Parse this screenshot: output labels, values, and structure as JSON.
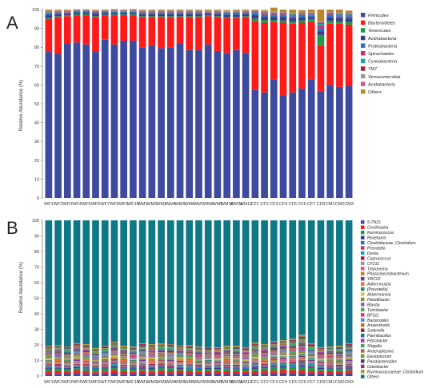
{
  "chart_data": [
    {
      "panel": "A",
      "type": "bar",
      "stacked": true,
      "ylabel": "Relative Abundance (%)",
      "ylim": [
        0,
        100
      ],
      "yticks": [
        0,
        10,
        20,
        30,
        40,
        50,
        60,
        70,
        80,
        90,
        100
      ],
      "categories": [
        "WF1",
        "WF2",
        "WF3",
        "WF4",
        "WF5",
        "WF6",
        "WF7",
        "WF8",
        "WF9",
        "WF10",
        "WM1",
        "WM2",
        "WM3",
        "WM4",
        "WM5",
        "WM6",
        "WM7",
        "WM8",
        "WM9",
        "WM10",
        "WM11",
        "WM12",
        "CF1",
        "CF2",
        "CF3",
        "CF4",
        "CF5",
        "CF6",
        "CF7",
        "CF8",
        "CM1",
        "CM2",
        "CM3"
      ],
      "series": [
        {
          "name": "Firmicutes",
          "color": "#3d4a9e",
          "values": [
            77.5,
            76.5,
            82,
            82.5,
            81.5,
            77.5,
            84,
            81.5,
            83.5,
            83.5,
            80,
            81,
            79.5,
            80,
            82,
            78.5,
            78.5,
            81.5,
            78,
            77,
            78.5,
            77,
            57.5,
            56,
            63,
            54.5,
            56,
            58,
            63,
            56.5,
            60,
            59,
            59.5
          ]
        },
        {
          "name": "Bacteroidetes",
          "color": "#ff1a1a",
          "values": [
            17.5,
            19.5,
            14.5,
            14.5,
            15.5,
            18.5,
            13,
            15.5,
            13.5,
            13.5,
            16,
            15,
            16.5,
            16,
            14,
            17.5,
            17.5,
            15,
            18,
            18.5,
            17,
            19,
            36.5,
            37,
            30.5,
            38.5,
            36.5,
            35,
            30.5,
            24.5,
            32.5,
            33.5,
            32.5
          ]
        },
        {
          "name": "Tenericutes",
          "color": "#1f9a4a",
          "values": [
            0.5,
            0.5,
            0.5,
            0.5,
            0.5,
            0.5,
            0.3,
            0.4,
            0.4,
            0.4,
            0.5,
            0.5,
            0.5,
            0.5,
            0.5,
            0.5,
            0.5,
            0.4,
            0.5,
            0.5,
            0.6,
            0.5,
            1.2,
            1.5,
            1.0,
            1.2,
            1.2,
            1.3,
            1.3,
            5.5,
            1.5,
            1.2,
            1.5
          ]
        },
        {
          "name": "Actinobacteria",
          "color": "#3b3c8c",
          "values": [
            1.5,
            1.0,
            0.8,
            0.8,
            0.8,
            1.2,
            0.8,
            0.8,
            0.8,
            0.8,
            1.0,
            1.0,
            1.0,
            1.0,
            1.0,
            1.0,
            1.0,
            0.8,
            1.0,
            1.2,
            1.2,
            1.0,
            1.8,
            1.5,
            1.5,
            1.8,
            1.8,
            1.5,
            1.2,
            2.0,
            1.8,
            1.8,
            1.8
          ]
        },
        {
          "name": "Proteobacteria",
          "color": "#2f6fc0",
          "values": [
            1.0,
            0.8,
            0.6,
            0.6,
            0.6,
            0.8,
            0.6,
            0.6,
            0.6,
            0.6,
            0.8,
            0.8,
            0.8,
            0.8,
            0.8,
            0.8,
            0.8,
            0.6,
            0.8,
            0.8,
            0.9,
            0.8,
            1.0,
            1.2,
            1.0,
            1.0,
            1.0,
            1.0,
            0.9,
            1.5,
            1.2,
            1.0,
            1.2
          ]
        },
        {
          "name": "Spirochaetes",
          "color": "#c8336e",
          "values": [
            0.4,
            0.3,
            0.3,
            0.3,
            0.3,
            0.3,
            0.3,
            0.3,
            0.3,
            0.3,
            0.3,
            0.3,
            0.3,
            0.3,
            0.3,
            0.3,
            0.3,
            0.3,
            0.3,
            0.3,
            0.3,
            0.3,
            0.5,
            0.5,
            0.5,
            0.5,
            0.5,
            0.5,
            0.5,
            1.5,
            0.5,
            0.5,
            0.5
          ]
        },
        {
          "name": "Cyanobacteria",
          "color": "#1aa6a6",
          "values": [
            0.3,
            0.3,
            0.2,
            0.2,
            0.2,
            0.2,
            0.2,
            0.2,
            0.2,
            0.2,
            0.3,
            0.3,
            0.3,
            0.3,
            0.3,
            0.3,
            0.3,
            0.2,
            0.3,
            0.3,
            0.3,
            0.3,
            0.5,
            0.5,
            0.5,
            0.5,
            0.5,
            0.5,
            0.5,
            1.0,
            0.5,
            0.5,
            0.5
          ]
        },
        {
          "name": "TM7",
          "color": "#b01f3a",
          "values": [
            0.2,
            0.2,
            0.2,
            0.2,
            0.2,
            0.2,
            0.2,
            0.2,
            0.2,
            0.2,
            0.2,
            0.2,
            0.2,
            0.2,
            0.2,
            0.2,
            0.2,
            0.2,
            0.2,
            0.2,
            0.2,
            0.2,
            0.3,
            0.3,
            0.3,
            0.3,
            0.3,
            0.3,
            0.3,
            0.5,
            0.3,
            0.3,
            0.3
          ]
        },
        {
          "name": "Verrucomicrobia",
          "color": "#9a9a9a",
          "values": [
            0.3,
            0.3,
            0.2,
            0.2,
            0.2,
            0.2,
            0.2,
            0.2,
            0.2,
            0.2,
            0.3,
            0.3,
            0.3,
            0.3,
            0.3,
            0.3,
            0.3,
            0.2,
            0.3,
            0.3,
            0.3,
            0.3,
            0.3,
            0.5,
            0.5,
            0.3,
            0.3,
            0.3,
            0.3,
            0.5,
            0.3,
            0.5,
            0.5
          ]
        },
        {
          "name": "Acidobacteria",
          "color": "#d05a8a",
          "values": [
            0.1,
            0.1,
            0.1,
            0.1,
            0.1,
            0.1,
            0.1,
            0.1,
            0.1,
            0.1,
            0.1,
            0.1,
            0.1,
            0.1,
            0.1,
            0.1,
            0.1,
            0.1,
            0.1,
            0.1,
            0.1,
            0.1,
            0.1,
            0.2,
            0.2,
            0.1,
            0.1,
            0.1,
            0.1,
            0.3,
            0.1,
            0.2,
            0.2
          ]
        },
        {
          "name": "Others",
          "color": "#b8862b",
          "values": [
            0.7,
            0.5,
            0.6,
            0.3,
            0.3,
            0.5,
            0.3,
            0.5,
            0.3,
            0.5,
            0.5,
            0.5,
            0.5,
            0.5,
            0.5,
            0.5,
            0.5,
            0.7,
            0.5,
            0.6,
            0.6,
            0.5,
            0.3,
            0.6,
            2.0,
            1.3,
            1.8,
            1.2,
            1.4,
            6.2,
            1.3,
            1.5,
            1.0
          ]
        }
      ]
    },
    {
      "panel": "B",
      "type": "bar",
      "stacked": true,
      "ylabel": "Relative Abundance (%)",
      "ylim": [
        0,
        100
      ],
      "yticks": [
        0,
        10,
        20,
        30,
        40,
        50,
        60,
        70,
        80,
        90,
        100
      ],
      "categories": [
        "WF1",
        "WF2",
        "WF3",
        "WF4",
        "WF5",
        "WF6",
        "WF7",
        "WF8",
        "WF9",
        "WF10",
        "WM1",
        "WM2",
        "WM3",
        "WM4",
        "WM5",
        "WM6",
        "WM7",
        "WM8",
        "WM9",
        "WM10",
        "WM11",
        "WM12",
        "CF1",
        "CF2",
        "CF3",
        "CF4",
        "CF5",
        "CF6",
        "CF7",
        "CF8",
        "CM1",
        "CM2",
        "CM3"
      ],
      "genus_colors": [
        "#3d4a9e",
        "#ff1a1a",
        "#1f9a4a",
        "#3b3c8c",
        "#2f6fc0",
        "#c8336e",
        "#1aa6a6",
        "#b01f3a",
        "#9a9a9a",
        "#d05a8a",
        "#b8862b",
        "#6a3d9a",
        "#e8743b",
        "#2a8c6e",
        "#e3c33a",
        "#8c8c3a",
        "#8a5cc8",
        "#5aa05a",
        "#d63a7a",
        "#4a8ac8",
        "#c86a2a",
        "#7a3a3a",
        "#2a6a9a",
        "#aa3aaa",
        "#3aaa6a",
        "#aa6a3a",
        "#6a9a3a",
        "#3a4a6a",
        "#9a3a5a",
        "#aa9a3a"
      ],
      "others_color": "#0e7886",
      "others_values": [
        80.5,
        80,
        81,
        79,
        79.5,
        82,
        80.5,
        78,
        80.5,
        81,
        79,
        79.5,
        79,
        79.5,
        80.5,
        80,
        81,
        81.5,
        81.5,
        80.5,
        80.5,
        81.5,
        78.5,
        79.5,
        77.5,
        77,
        76,
        73.5,
        79,
        81.5,
        81,
        80.5,
        79
      ],
      "legend": [
        "5-7N15",
        "Oscillospira",
        "Ruminococcus",
        "Roseburia",
        "Clostridiaceae_Clostridium",
        "Prevotella",
        "Dorea",
        "Coprococcus",
        "CF231",
        "Treponema",
        "Phascolarctobacterium",
        "YRC22",
        "Adlercreutzia",
        "[Prevotella]",
        "Akkermansia",
        "Paludibacter",
        "Blautia",
        "Turicibacter",
        "BF311",
        "Bacteroides",
        "Anaerofustis",
        "Sutterella",
        "Paenibacillus",
        "Fibrobacter",
        "Shigella",
        "Anaeroplasma",
        "Epulopiscium",
        "Parabacteroides",
        "Odoribacter",
        "Ruminococcaceae_Clostridium",
        "Others"
      ]
    }
  ]
}
